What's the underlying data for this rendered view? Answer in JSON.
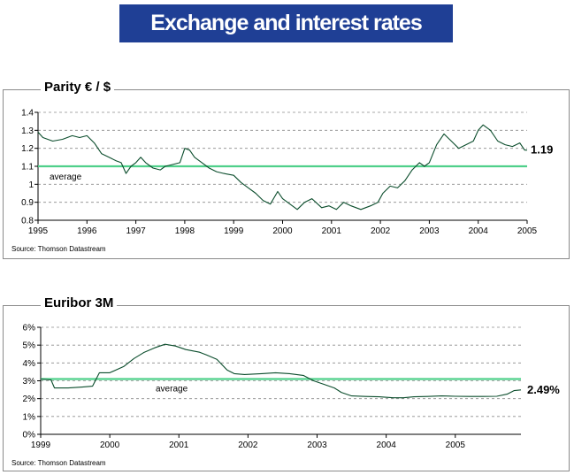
{
  "title": "Exchange and interest rates",
  "chart_data": [
    {
      "type": "line",
      "title": "Parity € / $",
      "x_ticks": [
        "1995",
        "1996",
        "1997",
        "1998",
        "1999",
        "2000",
        "2001",
        "2002",
        "2003",
        "2004",
        "2005"
      ],
      "xlim": [
        1995,
        2005
      ],
      "y_ticks": [
        "0.8",
        "0.9",
        "1",
        "1.1",
        "1.2",
        "1.3",
        "1.4"
      ],
      "ylim": [
        0.8,
        1.4
      ],
      "grid": true,
      "average": 1.1,
      "average_label": "average",
      "end_label": "1.19",
      "source": "Source: Thomson Datastream",
      "series": [
        {
          "values": [
            [
              1995.0,
              1.29
            ],
            [
              1995.1,
              1.26
            ],
            [
              1995.3,
              1.24
            ],
            [
              1995.5,
              1.25
            ],
            [
              1995.7,
              1.27
            ],
            [
              1995.85,
              1.26
            ],
            [
              1996.0,
              1.27
            ],
            [
              1996.15,
              1.23
            ],
            [
              1996.3,
              1.17
            ],
            [
              1996.45,
              1.15
            ],
            [
              1996.6,
              1.13
            ],
            [
              1996.7,
              1.12
            ],
            [
              1996.8,
              1.06
            ],
            [
              1996.9,
              1.1
            ],
            [
              1997.0,
              1.12
            ],
            [
              1997.1,
              1.15
            ],
            [
              1997.2,
              1.12
            ],
            [
              1997.35,
              1.09
            ],
            [
              1997.5,
              1.08
            ],
            [
              1997.6,
              1.1
            ],
            [
              1997.75,
              1.11
            ],
            [
              1997.9,
              1.12
            ],
            [
              1998.0,
              1.2
            ],
            [
              1998.1,
              1.19
            ],
            [
              1998.2,
              1.15
            ],
            [
              1998.35,
              1.12
            ],
            [
              1998.5,
              1.09
            ],
            [
              1998.65,
              1.07
            ],
            [
              1998.8,
              1.06
            ],
            [
              1999.0,
              1.05
            ],
            [
              1999.15,
              1.01
            ],
            [
              1999.3,
              0.98
            ],
            [
              1999.45,
              0.95
            ],
            [
              1999.6,
              0.91
            ],
            [
              1999.75,
              0.89
            ],
            [
              1999.9,
              0.96
            ],
            [
              2000.0,
              0.92
            ],
            [
              2000.15,
              0.89
            ],
            [
              2000.3,
              0.86
            ],
            [
              2000.45,
              0.9
            ],
            [
              2000.6,
              0.92
            ],
            [
              2000.8,
              0.87
            ],
            [
              2000.95,
              0.88
            ],
            [
              2001.1,
              0.86
            ],
            [
              2001.25,
              0.9
            ],
            [
              2001.4,
              0.88
            ],
            [
              2001.6,
              0.86
            ],
            [
              2001.8,
              0.88
            ],
            [
              2001.95,
              0.9
            ],
            [
              2002.05,
              0.95
            ],
            [
              2002.2,
              0.99
            ],
            [
              2002.35,
              0.98
            ],
            [
              2002.5,
              1.02
            ],
            [
              2002.65,
              1.08
            ],
            [
              2002.8,
              1.12
            ],
            [
              2002.9,
              1.1
            ],
            [
              2003.0,
              1.12
            ],
            [
              2003.15,
              1.22
            ],
            [
              2003.3,
              1.28
            ],
            [
              2003.45,
              1.24
            ],
            [
              2003.6,
              1.2
            ],
            [
              2003.75,
              1.22
            ],
            [
              2003.9,
              1.24
            ],
            [
              2004.0,
              1.3
            ],
            [
              2004.1,
              1.33
            ],
            [
              2004.25,
              1.3
            ],
            [
              2004.4,
              1.24
            ],
            [
              2004.55,
              1.22
            ],
            [
              2004.7,
              1.21
            ],
            [
              2004.85,
              1.23
            ],
            [
              2004.95,
              1.19
            ],
            [
              2005.0,
              1.19
            ]
          ]
        }
      ]
    },
    {
      "type": "line",
      "title": "Euribor 3M",
      "x_ticks": [
        "1999",
        "2000",
        "2001",
        "2002",
        "2003",
        "2004",
        "2005"
      ],
      "xlim": [
        1999,
        2005.95
      ],
      "y_ticks": [
        "0%",
        "1%",
        "2%",
        "3%",
        "4%",
        "5%",
        "6%"
      ],
      "ylim": [
        0,
        6
      ],
      "grid": true,
      "average": 3.1,
      "average_label": "average",
      "end_label": "2.49%",
      "source": "Source: Thomson Datastream",
      "series": [
        {
          "values": [
            [
              1999.0,
              3.1
            ],
            [
              1999.15,
              3.05
            ],
            [
              1999.2,
              2.6
            ],
            [
              1999.4,
              2.6
            ],
            [
              1999.6,
              2.65
            ],
            [
              1999.75,
              2.7
            ],
            [
              1999.85,
              3.45
            ],
            [
              2000.0,
              3.45
            ],
            [
              2000.2,
              3.8
            ],
            [
              2000.35,
              4.25
            ],
            [
              2000.5,
              4.6
            ],
            [
              2000.65,
              4.85
            ],
            [
              2000.8,
              5.05
            ],
            [
              2000.95,
              4.95
            ],
            [
              2001.1,
              4.75
            ],
            [
              2001.3,
              4.6
            ],
            [
              2001.4,
              4.45
            ],
            [
              2001.55,
              4.2
            ],
            [
              2001.7,
              3.6
            ],
            [
              2001.8,
              3.4
            ],
            [
              2001.95,
              3.35
            ],
            [
              2002.2,
              3.4
            ],
            [
              2002.4,
              3.45
            ],
            [
              2002.6,
              3.4
            ],
            [
              2002.8,
              3.3
            ],
            [
              2002.95,
              3.0
            ],
            [
              2003.1,
              2.8
            ],
            [
              2003.25,
              2.6
            ],
            [
              2003.35,
              2.35
            ],
            [
              2003.5,
              2.15
            ],
            [
              2003.7,
              2.12
            ],
            [
              2003.9,
              2.1
            ],
            [
              2004.1,
              2.05
            ],
            [
              2004.25,
              2.05
            ],
            [
              2004.4,
              2.1
            ],
            [
              2004.6,
              2.12
            ],
            [
              2004.8,
              2.15
            ],
            [
              2005.0,
              2.13
            ],
            [
              2005.2,
              2.12
            ],
            [
              2005.4,
              2.12
            ],
            [
              2005.6,
              2.13
            ],
            [
              2005.75,
              2.25
            ],
            [
              2005.85,
              2.45
            ],
            [
              2005.95,
              2.49
            ]
          ]
        }
      ]
    }
  ]
}
